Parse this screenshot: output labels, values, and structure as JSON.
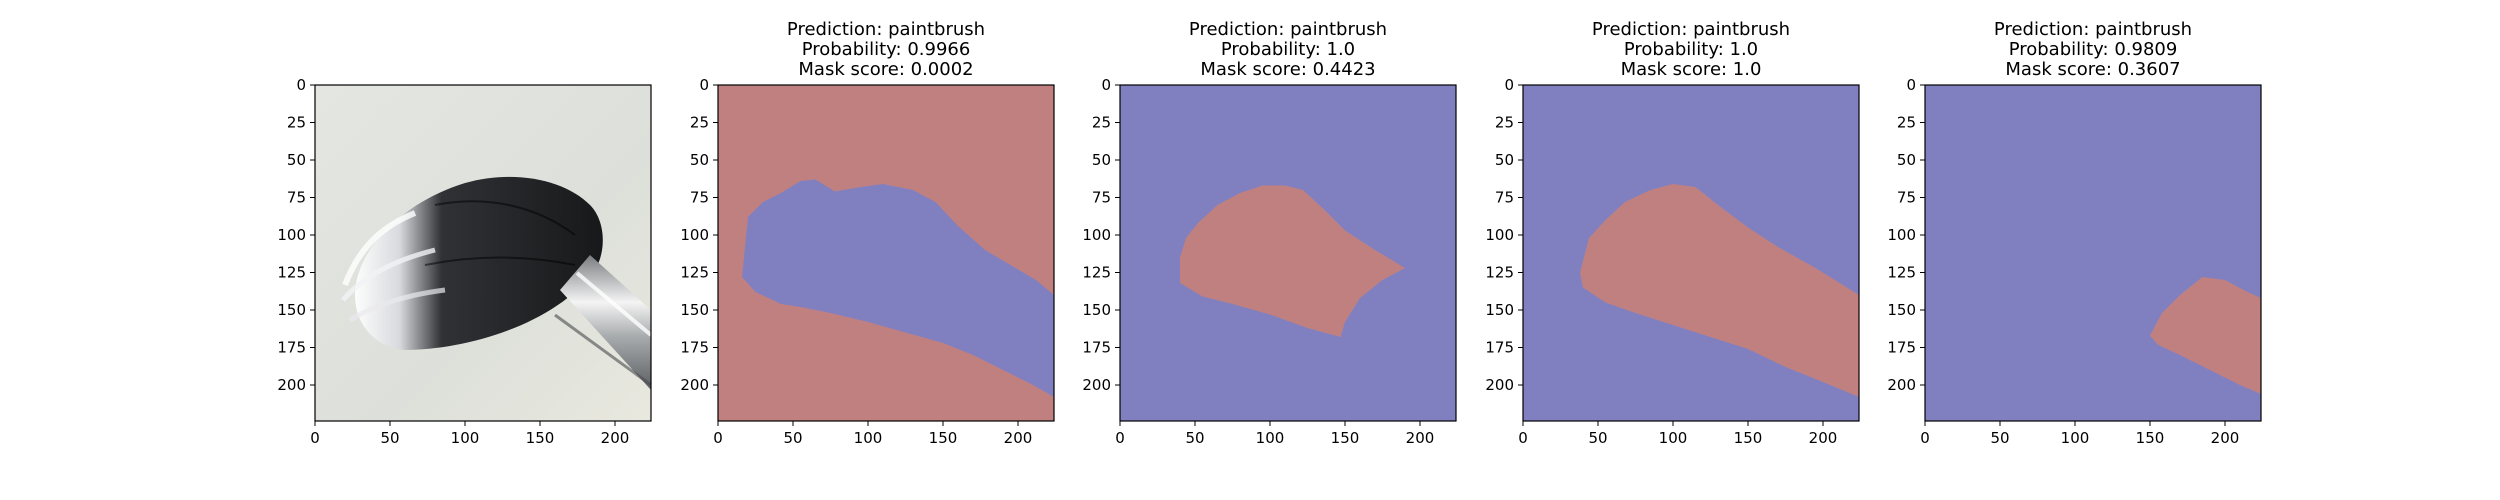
{
  "colors": {
    "background_region": "#8080c0",
    "object_region": "#c08080",
    "axes_frame": "#000000"
  },
  "chart_data": [
    {
      "type": "image",
      "subject": "paintbrush photo",
      "title_lines": [],
      "xticks": [
        0,
        50,
        100,
        150,
        200
      ],
      "yticks": [
        0,
        25,
        50,
        75,
        100,
        125,
        150,
        175,
        200
      ],
      "xlim": [
        0,
        224
      ],
      "ylim": [
        224,
        0
      ]
    },
    {
      "type": "heatmap",
      "title_lines": [
        "Prediction: paintbrush",
        "Probability: 0.9966",
        "Mask score: 0.0002"
      ],
      "mask_inverted": true,
      "mask_polygon": [
        [
          20,
          88
        ],
        [
          30,
          78
        ],
        [
          42,
          72
        ],
        [
          55,
          64
        ],
        [
          65,
          63
        ],
        [
          78,
          71
        ],
        [
          95,
          68
        ],
        [
          110,
          66
        ],
        [
          130,
          70
        ],
        [
          145,
          78
        ],
        [
          160,
          94
        ],
        [
          178,
          110
        ],
        [
          195,
          120
        ],
        [
          212,
          130
        ],
        [
          224,
          140
        ],
        [
          224,
          208
        ],
        [
          210,
          200
        ],
        [
          190,
          190
        ],
        [
          170,
          180
        ],
        [
          150,
          172
        ],
        [
          125,
          165
        ],
        [
          100,
          158
        ],
        [
          75,
          152
        ],
        [
          55,
          148
        ],
        [
          42,
          146
        ],
        [
          25,
          138
        ],
        [
          16,
          128
        ]
      ],
      "xticks": [
        0,
        50,
        100,
        150,
        200
      ],
      "yticks": [
        0,
        25,
        50,
        75,
        100,
        125,
        150,
        175,
        200
      ],
      "xlim": [
        0,
        224
      ],
      "ylim": [
        224,
        0
      ]
    },
    {
      "type": "heatmap",
      "title_lines": [
        "Prediction: paintbrush",
        "Probability: 1.0",
        "Mask score: 0.4423"
      ],
      "mask_inverted": false,
      "mask_polygon": [
        [
          40,
          115
        ],
        [
          44,
          102
        ],
        [
          52,
          92
        ],
        [
          65,
          80
        ],
        [
          80,
          72
        ],
        [
          95,
          67
        ],
        [
          110,
          67
        ],
        [
          122,
          70
        ],
        [
          135,
          82
        ],
        [
          150,
          97
        ],
        [
          170,
          110
        ],
        [
          190,
          122
        ],
        [
          175,
          130
        ],
        [
          160,
          142
        ],
        [
          150,
          158
        ],
        [
          147,
          168
        ],
        [
          125,
          162
        ],
        [
          100,
          153
        ],
        [
          75,
          146
        ],
        [
          55,
          141
        ],
        [
          40,
          132
        ]
      ],
      "xticks": [
        0,
        50,
        100,
        150,
        200
      ],
      "yticks": [
        0,
        25,
        50,
        75,
        100,
        125,
        150,
        175,
        200
      ],
      "xlim": [
        0,
        224
      ],
      "ylim": [
        224,
        0
      ]
    },
    {
      "type": "heatmap",
      "title_lines": [
        "Prediction: paintbrush",
        "Probability: 1.0",
        "Mask score: 1.0"
      ],
      "mask_inverted": false,
      "mask_polygon": [
        [
          38,
          125
        ],
        [
          44,
          102
        ],
        [
          55,
          90
        ],
        [
          68,
          78
        ],
        [
          85,
          70
        ],
        [
          100,
          66
        ],
        [
          115,
          68
        ],
        [
          130,
          80
        ],
        [
          150,
          95
        ],
        [
          170,
          108
        ],
        [
          195,
          122
        ],
        [
          224,
          140
        ],
        [
          224,
          208
        ],
        [
          200,
          198
        ],
        [
          175,
          188
        ],
        [
          150,
          176
        ],
        [
          125,
          168
        ],
        [
          100,
          160
        ],
        [
          75,
          152
        ],
        [
          55,
          145
        ],
        [
          40,
          135
        ]
      ],
      "xticks": [
        0,
        50,
        100,
        150,
        200
      ],
      "yticks": [
        0,
        25,
        50,
        75,
        100,
        125,
        150,
        175,
        200
      ],
      "xlim": [
        0,
        224
      ],
      "ylim": [
        224,
        0
      ]
    },
    {
      "type": "heatmap",
      "title_lines": [
        "Prediction: paintbrush",
        "Probability: 0.9809",
        "Mask score: 0.3607"
      ],
      "mask_inverted": false,
      "mask_polygon": [
        [
          150,
          167
        ],
        [
          158,
          152
        ],
        [
          170,
          140
        ],
        [
          185,
          128
        ],
        [
          200,
          130
        ],
        [
          215,
          138
        ],
        [
          224,
          142
        ],
        [
          224,
          206
        ],
        [
          210,
          200
        ],
        [
          190,
          190
        ],
        [
          170,
          180
        ],
        [
          155,
          173
        ]
      ],
      "xticks": [
        0,
        50,
        100,
        150,
        200
      ],
      "yticks": [
        0,
        25,
        50,
        75,
        100,
        125,
        150,
        175,
        200
      ],
      "xlim": [
        0,
        224
      ],
      "ylim": [
        224,
        0
      ]
    }
  ]
}
